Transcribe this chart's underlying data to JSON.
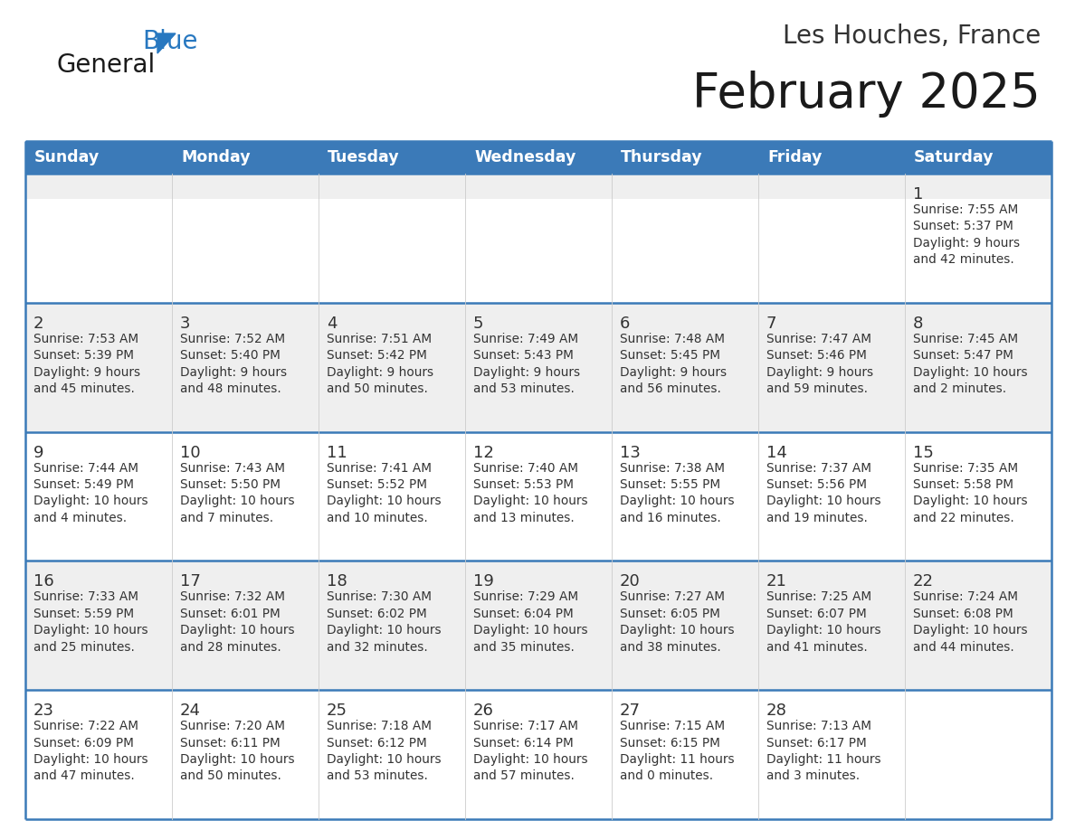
{
  "title": "February 2025",
  "subtitle": "Les Houches, France",
  "header_bg": "#3b7ab8",
  "header_text": "#ffffff",
  "cell_bg_light": "#efefef",
  "cell_bg_white": "#ffffff",
  "grid_line_color": "#3b7ab8",
  "text_color": "#333333",
  "day_headers": [
    "Sunday",
    "Monday",
    "Tuesday",
    "Wednesday",
    "Thursday",
    "Friday",
    "Saturday"
  ],
  "calendar_data": [
    [
      null,
      null,
      null,
      null,
      null,
      null,
      {
        "day": 1,
        "sunrise": "7:55 AM",
        "sunset": "5:37 PM",
        "daylight": "9 hours\nand 42 minutes."
      }
    ],
    [
      {
        "day": 2,
        "sunrise": "7:53 AM",
        "sunset": "5:39 PM",
        "daylight": "9 hours\nand 45 minutes."
      },
      {
        "day": 3,
        "sunrise": "7:52 AM",
        "sunset": "5:40 PM",
        "daylight": "9 hours\nand 48 minutes."
      },
      {
        "day": 4,
        "sunrise": "7:51 AM",
        "sunset": "5:42 PM",
        "daylight": "9 hours\nand 50 minutes."
      },
      {
        "day": 5,
        "sunrise": "7:49 AM",
        "sunset": "5:43 PM",
        "daylight": "9 hours\nand 53 minutes."
      },
      {
        "day": 6,
        "sunrise": "7:48 AM",
        "sunset": "5:45 PM",
        "daylight": "9 hours\nand 56 minutes."
      },
      {
        "day": 7,
        "sunrise": "7:47 AM",
        "sunset": "5:46 PM",
        "daylight": "9 hours\nand 59 minutes."
      },
      {
        "day": 8,
        "sunrise": "7:45 AM",
        "sunset": "5:47 PM",
        "daylight": "10 hours\nand 2 minutes."
      }
    ],
    [
      {
        "day": 9,
        "sunrise": "7:44 AM",
        "sunset": "5:49 PM",
        "daylight": "10 hours\nand 4 minutes."
      },
      {
        "day": 10,
        "sunrise": "7:43 AM",
        "sunset": "5:50 PM",
        "daylight": "10 hours\nand 7 minutes."
      },
      {
        "day": 11,
        "sunrise": "7:41 AM",
        "sunset": "5:52 PM",
        "daylight": "10 hours\nand 10 minutes."
      },
      {
        "day": 12,
        "sunrise": "7:40 AM",
        "sunset": "5:53 PM",
        "daylight": "10 hours\nand 13 minutes."
      },
      {
        "day": 13,
        "sunrise": "7:38 AM",
        "sunset": "5:55 PM",
        "daylight": "10 hours\nand 16 minutes."
      },
      {
        "day": 14,
        "sunrise": "7:37 AM",
        "sunset": "5:56 PM",
        "daylight": "10 hours\nand 19 minutes."
      },
      {
        "day": 15,
        "sunrise": "7:35 AM",
        "sunset": "5:58 PM",
        "daylight": "10 hours\nand 22 minutes."
      }
    ],
    [
      {
        "day": 16,
        "sunrise": "7:33 AM",
        "sunset": "5:59 PM",
        "daylight": "10 hours\nand 25 minutes."
      },
      {
        "day": 17,
        "sunrise": "7:32 AM",
        "sunset": "6:01 PM",
        "daylight": "10 hours\nand 28 minutes."
      },
      {
        "day": 18,
        "sunrise": "7:30 AM",
        "sunset": "6:02 PM",
        "daylight": "10 hours\nand 32 minutes."
      },
      {
        "day": 19,
        "sunrise": "7:29 AM",
        "sunset": "6:04 PM",
        "daylight": "10 hours\nand 35 minutes."
      },
      {
        "day": 20,
        "sunrise": "7:27 AM",
        "sunset": "6:05 PM",
        "daylight": "10 hours\nand 38 minutes."
      },
      {
        "day": 21,
        "sunrise": "7:25 AM",
        "sunset": "6:07 PM",
        "daylight": "10 hours\nand 41 minutes."
      },
      {
        "day": 22,
        "sunrise": "7:24 AM",
        "sunset": "6:08 PM",
        "daylight": "10 hours\nand 44 minutes."
      }
    ],
    [
      {
        "day": 23,
        "sunrise": "7:22 AM",
        "sunset": "6:09 PM",
        "daylight": "10 hours\nand 47 minutes."
      },
      {
        "day": 24,
        "sunrise": "7:20 AM",
        "sunset": "6:11 PM",
        "daylight": "10 hours\nand 50 minutes."
      },
      {
        "day": 25,
        "sunrise": "7:18 AM",
        "sunset": "6:12 PM",
        "daylight": "10 hours\nand 53 minutes."
      },
      {
        "day": 26,
        "sunrise": "7:17 AM",
        "sunset": "6:14 PM",
        "daylight": "10 hours\nand 57 minutes."
      },
      {
        "day": 27,
        "sunrise": "7:15 AM",
        "sunset": "6:15 PM",
        "daylight": "11 hours\nand 0 minutes."
      },
      {
        "day": 28,
        "sunrise": "7:13 AM",
        "sunset": "6:17 PM",
        "daylight": "11 hours\nand 3 minutes."
      },
      null
    ]
  ],
  "logo_color_general": "#1a1a1a",
  "logo_color_blue": "#2878c0",
  "logo_triangle_color": "#2878c0"
}
